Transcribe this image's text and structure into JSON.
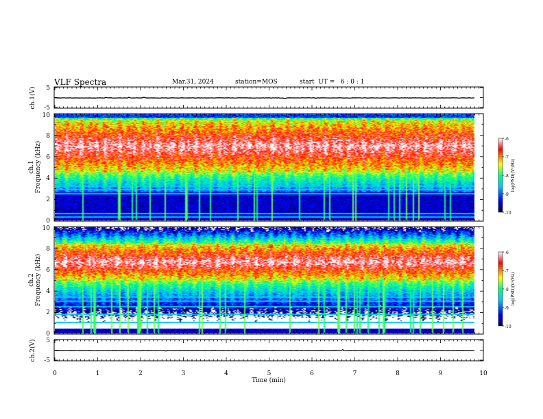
{
  "header": {
    "title": "VLF Spectra",
    "date": "Mar.31, 2024",
    "station": "station=MOS",
    "start_ut": "start  UT =   6 : 0 : 1"
  },
  "panels": {
    "ch1_wave_label": "ch.1(V)",
    "ch2_wave_label": "ch.2(V)",
    "ch1_spec_label": "ch.1",
    "ch2_spec_label": "ch.2",
    "freq_label": "Frequency (kHz)",
    "wave_ticks": [
      "5",
      "-5"
    ],
    "freq_ticks": [
      "0",
      "2",
      "4",
      "6",
      "8",
      "10"
    ]
  },
  "colorbar": {
    "label": "log(PSD)(V²/Hz)",
    "ticks": [
      "-6",
      "-7",
      "-8",
      "-9",
      "-10"
    ]
  },
  "colors": {
    "spectrogram_scale": [
      "#00003a",
      "#0000ff",
      "#00c8ff",
      "#00ff80",
      "#ffff00",
      "#ff0000",
      "#ffffff"
    ]
  },
  "chart_data": [
    {
      "type": "line",
      "series": [
        {
          "values": [
            0.0
          ]
        }
      ],
      "ylabel": "ch.1(V)",
      "ylim": [
        -5,
        5
      ],
      "xlim": [
        0,
        10
      ],
      "y_ticks": [
        5,
        -5
      ]
    },
    {
      "type": "heatmap",
      "ylabel": "ch.1 Frequency (kHz)",
      "ylim": [
        0,
        10
      ],
      "xlim": [
        0,
        10
      ],
      "y_ticks": [
        0,
        2,
        4,
        6,
        8,
        10
      ],
      "colorbar_range": [
        -10,
        -6
      ],
      "dominant_band_khz": [
        4.5,
        9.5
      ],
      "narrowband_lines_khz": [
        3.2,
        2.9,
        2.5,
        0.6,
        0.3
      ]
    },
    {
      "type": "heatmap",
      "ylabel": "ch.2 Frequency (kHz)",
      "ylim": [
        0,
        10
      ],
      "xlim": [
        0,
        10
      ],
      "y_ticks": [
        0,
        2,
        4,
        6,
        8,
        10
      ],
      "colorbar_range": [
        -10,
        -6
      ],
      "dominant_band_khz": [
        5.0,
        8.5
      ],
      "narrowband_lines_khz": [
        3.4,
        3.0,
        2.5,
        1.8,
        1.0
      ]
    },
    {
      "type": "line",
      "series": [
        {
          "values": [
            0.0
          ]
        }
      ],
      "ylabel": "ch.2(V)",
      "ylim": [
        -5,
        5
      ],
      "xlim": [
        0,
        10
      ],
      "y_ticks": [
        5,
        -5
      ]
    }
  ],
  "x_axis": {
    "label": "Time  (min)",
    "ticks": [
      "0",
      "1",
      "2",
      "3",
      "4",
      "5",
      "6",
      "7",
      "8",
      "9",
      "10"
    ],
    "data_end_min": 9.8
  }
}
